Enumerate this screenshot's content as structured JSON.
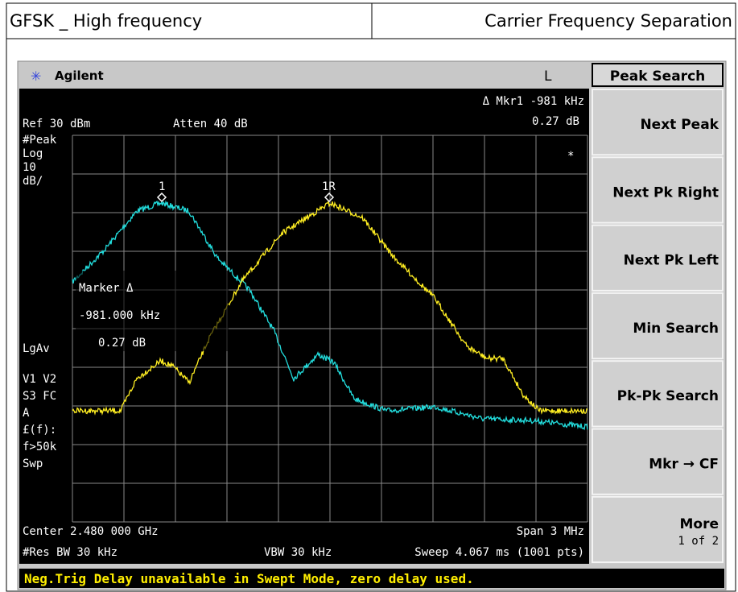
{
  "header": {
    "left": "GFSK _ High frequency",
    "right": "Carrier Frequency Separation"
  },
  "instrument": {
    "brand": "Agilent",
    "mode": "L",
    "menu_title": "Peak Search",
    "screen": {
      "marker_readout": "Δ Mkr1  -981 kHz",
      "marker_delta": "0.27 dB",
      "ref": "Ref 30 dBm",
      "atten": "Atten 40 dB",
      "left_labels": [
        "#Peak",
        "Log",
        "10",
        "dB/"
      ],
      "lgav": "LgAv",
      "left_labels2": [
        "V1  V2",
        "S3  FC",
        "A",
        "£(f):",
        "f>50k",
        "Swp"
      ],
      "star": "*",
      "marker1": "1",
      "marker1r": "1R",
      "marker_box": [
        "Marker Δ",
        "-981.000 kHz",
        "0.27 dB"
      ],
      "center": "Center 2.480 000 GHz",
      "span": "Span 3 MHz",
      "rbw": "#Res BW 30 kHz",
      "vbw": "VBW 30 kHz",
      "sweep": "Sweep 4.067 ms (1001 pts)"
    },
    "softkeys": [
      "Next Peak",
      "Next Pk Right",
      "Next Pk Left",
      "Min Search",
      "Pk-Pk Search",
      "Mkr → CF",
      "More"
    ],
    "more_sub": "1 of 2",
    "status": "Neg.Trig Delay unavailable in Swept Mode, zero delay used."
  }
}
